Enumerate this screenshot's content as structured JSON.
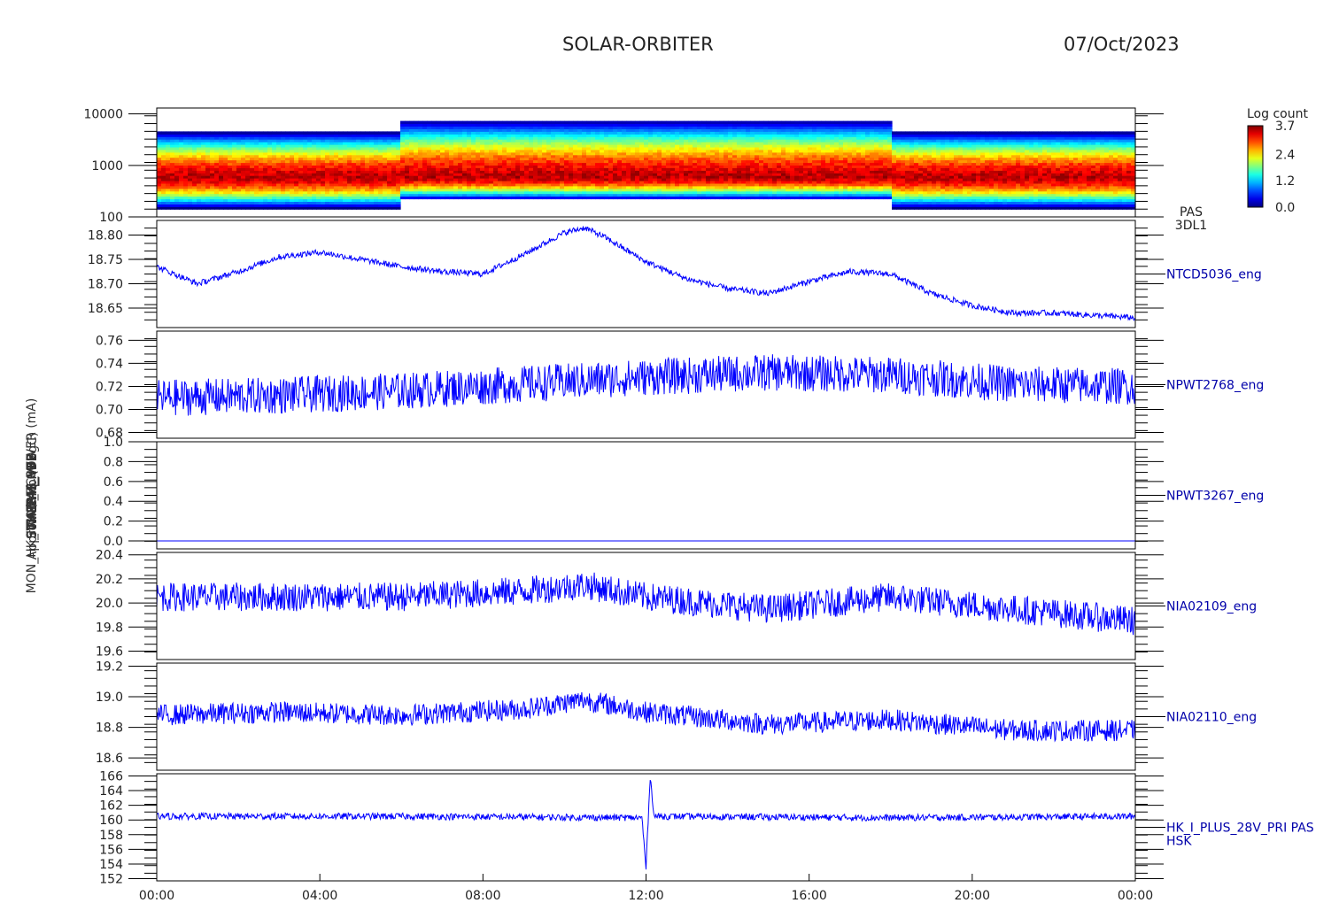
{
  "header": {
    "title": "SOLAR-ORBITER",
    "date": "07/Oct/2023"
  },
  "colors": {
    "trace": "#0000ff",
    "axis": "#000000",
    "label": "#0000aa"
  },
  "chart_data": [
    {
      "type": "heatmap",
      "ylabel": "(eV)",
      "ylog": true,
      "ylim": [
        100,
        13000
      ],
      "yticks": [
        "10000",
        "1000",
        "100"
      ],
      "ytick_values": [
        10000,
        1000,
        100
      ],
      "right_label": [
        "PAS",
        "3DL1"
      ],
      "colorbar": {
        "title": "Log count",
        "ticks": [
          "3.7",
          "2.4",
          "1.2",
          "0.0"
        ],
        "range": [
          0.0,
          3.7
        ]
      },
      "segments": [
        {
          "from": "00:00",
          "to": "06:00",
          "emin": 150,
          "emax": 4500
        },
        {
          "from": "06:00",
          "to": "12:00",
          "emin": 220,
          "emax": 7500
        },
        {
          "from": "12:00",
          "to": "18:00",
          "emin": 220,
          "emax": 7500
        },
        {
          "from": "18:00",
          "to": "24:00",
          "emin": 150,
          "emax": 4500
        }
      ],
      "peak_energy_ev": 600
    },
    {
      "type": "line",
      "ylabel": "Approx Temp (DegC)",
      "right_label": "NTCD5036_eng",
      "ylim": [
        18.61,
        18.83
      ],
      "yticks": [
        "18.80",
        "18.75",
        "18.70",
        "18.65"
      ],
      "ytick_values": [
        18.8,
        18.75,
        18.7,
        18.65
      ],
      "x_hours": [
        0,
        1,
        2,
        3,
        4,
        5,
        6,
        7,
        8,
        9,
        10,
        10.5,
        11,
        12,
        13,
        14,
        15,
        16,
        17,
        18,
        19,
        20,
        21,
        22,
        23,
        24
      ],
      "values": [
        18.735,
        18.7,
        18.725,
        18.755,
        18.765,
        18.75,
        18.735,
        18.725,
        18.72,
        18.76,
        18.805,
        18.815,
        18.795,
        18.745,
        18.71,
        18.69,
        18.68,
        18.705,
        18.725,
        18.72,
        18.68,
        18.655,
        18.64,
        18.64,
        18.635,
        18.63
      ],
      "noise": 0.006
    },
    {
      "type": "line",
      "ylabel": "SWA-EAS_VFB",
      "right_label": "NPWT2768_eng",
      "ylim": [
        0.675,
        0.768
      ],
      "yticks": [
        "0.76",
        "0.74",
        "0.72",
        "0.70",
        "0.68"
      ],
      "ytick_values": [
        0.76,
        0.74,
        0.72,
        0.7,
        0.68
      ],
      "x_hours": [
        0,
        3,
        6,
        9,
        12,
        15,
        18,
        21,
        24
      ],
      "values": [
        0.71,
        0.712,
        0.716,
        0.722,
        0.728,
        0.732,
        0.73,
        0.722,
        0.72
      ],
      "noise": 0.016
    },
    {
      "type": "line",
      "ylabel": "SWA-PAS_VFB",
      "right_label": "NPWT3267_eng",
      "ylim": [
        -0.08,
        1.0
      ],
      "yticks": [
        "1.0",
        "0.8",
        "0.6",
        "0.4",
        "0.2",
        "0.0"
      ],
      "ytick_values": [
        1.0,
        0.8,
        0.6,
        0.4,
        0.2,
        0.0
      ],
      "x_hours": [
        0,
        24
      ],
      "values": [
        0.0,
        0.0
      ],
      "noise": 0
    },
    {
      "type": "line",
      "ylabel": "THERM_CB",
      "right_label": "NIA02109_eng",
      "ylim": [
        19.53,
        20.42
      ],
      "yticks": [
        "20.4",
        "20.2",
        "20.0",
        "19.8",
        "19.6"
      ],
      "ytick_values": [
        20.4,
        20.2,
        20.0,
        19.8,
        19.6
      ],
      "x_hours": [
        0,
        3,
        6,
        9,
        10.5,
        12,
        15,
        18,
        21,
        24
      ],
      "values": [
        20.05,
        20.05,
        20.05,
        20.1,
        20.15,
        20.05,
        19.95,
        20.05,
        19.95,
        19.85
      ],
      "noise": 0.12
    },
    {
      "type": "line",
      "ylabel": "THERM_HV",
      "right_label": "NIA02110_eng",
      "ylim": [
        18.52,
        19.22
      ],
      "yticks": [
        "19.2",
        "19.0",
        "18.8",
        "18.6"
      ],
      "ytick_values": [
        19.2,
        19.0,
        18.8,
        18.6
      ],
      "x_hours": [
        0,
        3,
        6,
        9,
        10.5,
        12,
        15,
        18,
        21,
        24
      ],
      "values": [
        18.88,
        18.9,
        18.88,
        18.92,
        18.98,
        18.9,
        18.82,
        18.85,
        18.78,
        18.78
      ],
      "noise": 0.07
    },
    {
      "type": "line",
      "ylabel": "(mA)",
      "right_label": [
        "HK_I_PLUS_28V_PRI PAS",
        "HSK"
      ],
      "ylim": [
        151.7,
        166.3
      ],
      "yticks": [
        "166",
        "164",
        "162",
        "160",
        "158",
        "156",
        "154",
        "152"
      ],
      "ytick_values": [
        166,
        164,
        162,
        160,
        158,
        156,
        154,
        152
      ],
      "x_hours": [
        0,
        6,
        11.9,
        12.0,
        12.1,
        12.2,
        18,
        24
      ],
      "values": [
        160.5,
        160.5,
        160.3,
        153.5,
        166.0,
        160.5,
        160.3,
        160.5
      ],
      "noise": 0.45
    }
  ],
  "xaxis": {
    "ticks": [
      "00:00",
      "04:00",
      "08:00",
      "12:00",
      "16:00",
      "20:00",
      "00:00"
    ],
    "tick_hours": [
      0,
      4,
      8,
      12,
      16,
      20,
      24
    ]
  },
  "overlapped_labels": [
    "(eV)",
    "Approx Temp (DegC)",
    "SWA-EAS_VFB",
    "SWA-PAS_VFB",
    "THERM_CB",
    "THERM_HV",
    "MON_HK_IMON_PCPOWER (mA)"
  ]
}
